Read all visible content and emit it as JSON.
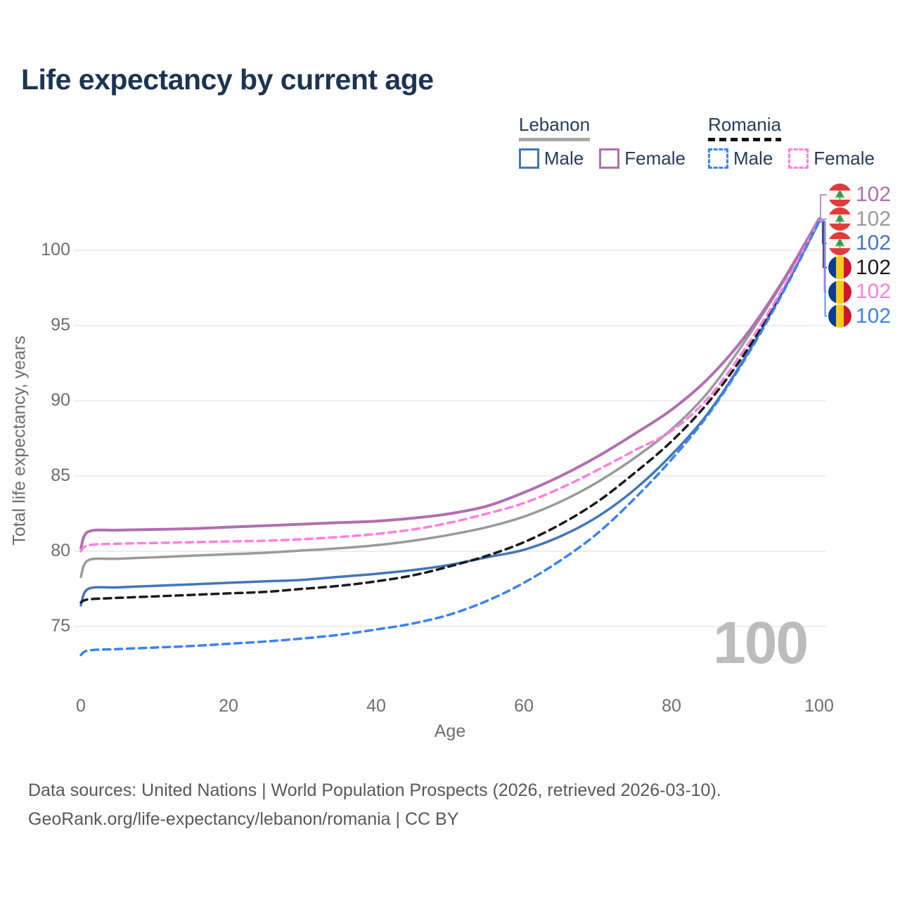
{
  "title": "Life expectancy by current age",
  "watermark_age": "100",
  "source_line1": "Data sources: United Nations | World Population Prospects (2026, retrieved 2026-03-10).",
  "source_line2": "GeoRank.org/life-expectancy/lebanon/romania | CC BY",
  "legend": {
    "groups": [
      {
        "name": "Lebanon",
        "line_style": "solid",
        "underline_color": "#a8a8a8",
        "items": [
          {
            "label": "Male",
            "color": "#4376b8",
            "dashed": false
          },
          {
            "label": "Female",
            "color": "#b06fb0",
            "dashed": false
          }
        ]
      },
      {
        "name": "Romania",
        "line_style": "dashed",
        "underline_color": "#111111",
        "items": [
          {
            "label": "Male",
            "color": "#3b82ee",
            "dashed": true
          },
          {
            "label": "Female",
            "color": "#ff7fe0",
            "dashed": true
          }
        ]
      }
    ]
  },
  "chart_data": {
    "type": "line",
    "title": "Life expectancy by current age",
    "xlabel": "Age",
    "ylabel": "Total life expectancy, years",
    "x_ticks": [
      0,
      20,
      40,
      60,
      80,
      100
    ],
    "y_ticks": [
      75,
      80,
      85,
      90,
      95,
      100
    ],
    "xlim": [
      0,
      100
    ],
    "ylim": [
      72.5,
      103
    ],
    "grid": "horizontal-only",
    "legend_position": "top-right",
    "ages": [
      0,
      1,
      5,
      10,
      15,
      20,
      25,
      30,
      35,
      40,
      45,
      50,
      55,
      60,
      65,
      70,
      75,
      80,
      85,
      90,
      95,
      100
    ],
    "series": [
      {
        "id": "lebanon-both",
        "name": "Lebanon Both sexes",
        "country": "Lebanon",
        "flag": "lebanon",
        "color": "#9a9a9a",
        "dashed": false,
        "row": 1,
        "end_label": "102",
        "values": [
          78.3,
          79.4,
          79.5,
          79.6,
          79.7,
          79.8,
          79.9,
          80.05,
          80.2,
          80.4,
          80.7,
          81.1,
          81.6,
          82.3,
          83.3,
          84.6,
          86.2,
          88.1,
          90.6,
          94.0,
          97.8,
          102.05
        ]
      },
      {
        "id": "lebanon-female",
        "name": "Lebanon Female",
        "country": "Lebanon",
        "flag": "lebanon",
        "color": "#b06fb0",
        "dashed": false,
        "row": 0,
        "end_label": "102",
        "values": [
          80.2,
          81.3,
          81.4,
          81.45,
          81.5,
          81.6,
          81.7,
          81.8,
          81.9,
          82.0,
          82.2,
          82.5,
          83.0,
          83.9,
          85.0,
          86.3,
          87.8,
          89.4,
          91.5,
          94.3,
          97.9,
          102.1
        ]
      },
      {
        "id": "lebanon-male",
        "name": "Lebanon Male",
        "country": "Lebanon",
        "flag": "lebanon",
        "color": "#4376b8",
        "dashed": false,
        "row": 2,
        "end_label": "102",
        "values": [
          76.4,
          77.5,
          77.6,
          77.7,
          77.8,
          77.9,
          78.0,
          78.1,
          78.3,
          78.5,
          78.75,
          79.1,
          79.6,
          80.1,
          81.0,
          82.3,
          84.1,
          86.4,
          89.2,
          92.9,
          97.2,
          101.9
        ]
      },
      {
        "id": "romania-both",
        "name": "Romania Both sexes",
        "country": "Romania",
        "flag": "romania",
        "color": "#1a1a1a",
        "dashed": true,
        "row": 3,
        "end_label": "102",
        "values": [
          76.6,
          76.8,
          76.9,
          77.0,
          77.1,
          77.2,
          77.3,
          77.5,
          77.7,
          78.0,
          78.4,
          79.0,
          79.7,
          80.6,
          81.8,
          83.3,
          85.2,
          87.3,
          89.9,
          93.2,
          97.3,
          102.0
        ]
      },
      {
        "id": "romania-female",
        "name": "Romania Female",
        "country": "Romania",
        "flag": "romania",
        "color": "#ff7fe0",
        "dashed": true,
        "row": 4,
        "end_label": "102",
        "values": [
          80.0,
          80.4,
          80.5,
          80.55,
          80.6,
          80.65,
          80.7,
          80.8,
          80.95,
          81.15,
          81.45,
          81.9,
          82.5,
          83.2,
          84.2,
          85.4,
          86.7,
          88.0,
          90.2,
          93.5,
          97.4,
          102.0
        ]
      },
      {
        "id": "romania-male",
        "name": "Romania Male",
        "country": "Romania",
        "flag": "romania",
        "color": "#3b82ee",
        "dashed": true,
        "row": 5,
        "end_label": "102",
        "values": [
          73.1,
          73.4,
          73.5,
          73.6,
          73.7,
          73.85,
          74.0,
          74.2,
          74.45,
          74.8,
          75.2,
          75.8,
          76.7,
          77.9,
          79.4,
          81.2,
          83.5,
          86.1,
          89.1,
          92.8,
          97.1,
          101.9
        ]
      }
    ]
  },
  "colors": {
    "title": "#1c3452",
    "legend_text": "#253d5c",
    "axis_text": "#6e6e6e",
    "gridline": "#e9e9e9",
    "watermark": "#bcbcbc",
    "source_text": "#585858"
  }
}
